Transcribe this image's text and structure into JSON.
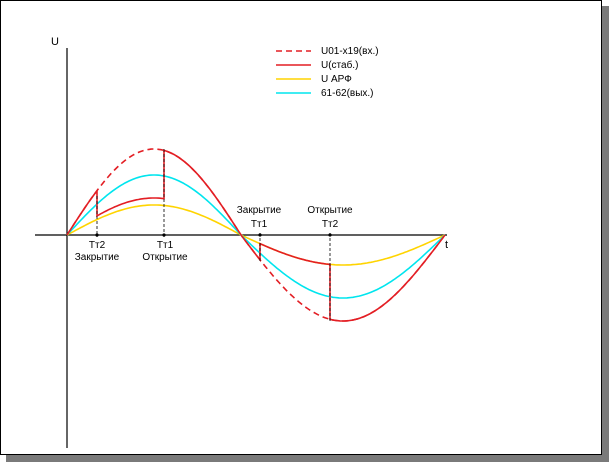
{
  "axes": {
    "y_label": "U",
    "x_label": "t"
  },
  "legend": [
    {
      "label": "U01-x19(вх.)",
      "color": "#e31e24",
      "dash": true
    },
    {
      "label": "U(стаб.)",
      "color": "#e31e24",
      "dash": false
    },
    {
      "label": "U АРФ",
      "color": "#ffd400",
      "dash": false
    },
    {
      "label": "61-62(вых.)",
      "color": "#00e5ee",
      "dash": false
    }
  ],
  "markers": {
    "tt2_close": {
      "top": "Тт2",
      "bottom": "Закрытие"
    },
    "tt1_open": {
      "top": "Тт1",
      "bottom": "Открытие"
    },
    "tt1_close": {
      "top": "Закрытие",
      "bottom": "Тт1"
    },
    "tt2_open": {
      "top": "Открытие",
      "bottom": "Тт2"
    }
  }
}
